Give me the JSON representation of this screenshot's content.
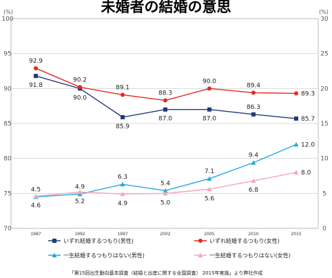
{
  "chart_data": {
    "type": "line",
    "title": "未婚者の結婚の意思",
    "left_unit": "(%)",
    "right_unit": "(%)",
    "categories": [
      "1987",
      "1992",
      "1997",
      "2002",
      "2005",
      "2010",
      "2015"
    ],
    "left_axis": {
      "ticks": [
        "70",
        "75",
        "80",
        "85",
        "90",
        "95",
        "100"
      ],
      "ylim": [
        70,
        100
      ]
    },
    "right_axis": {
      "ticks": [
        "0",
        "5",
        "10",
        "15",
        "20",
        "25",
        "30"
      ],
      "ylim": [
        0,
        30
      ]
    },
    "grid": "horizontal",
    "legend_position": "bottom",
    "series": [
      {
        "name": "いずれ結婚するつもり(男性)",
        "axis": "left",
        "color": "#1f3a7a",
        "marker": "square",
        "values": [
          91.8,
          90.0,
          85.9,
          87.0,
          87.0,
          86.3,
          85.7
        ],
        "labels": [
          "91.8",
          "90.0",
          "85.9",
          "87.0",
          "87.0",
          "86.3",
          "85.7"
        ],
        "label_side": [
          "below",
          "below",
          "below",
          "below",
          "below",
          "above",
          "right"
        ]
      },
      {
        "name": "いずれ結婚するつもり(女性)",
        "axis": "left",
        "color": "#e8251e",
        "marker": "circle",
        "values": [
          92.9,
          90.2,
          89.1,
          88.3,
          90.0,
          89.4,
          89.3
        ],
        "labels": [
          "92.9",
          "90.2",
          "89.1",
          "88.3",
          "90.0",
          "89.4",
          "89.3"
        ],
        "label_side": [
          "above",
          "above",
          "above",
          "above",
          "above",
          "above",
          "right"
        ]
      },
      {
        "name": "一生結婚するつもりはない(男性)",
        "axis": "right",
        "color": "#23a9d8",
        "marker": "triangle",
        "values": [
          4.5,
          4.9,
          6.3,
          5.4,
          7.1,
          9.4,
          12.0
        ],
        "labels": [
          "4.5",
          "4.9",
          "6.3",
          "5.4",
          "7.1",
          "9.4",
          "12.0"
        ],
        "label_side": [
          "above",
          "above",
          "above",
          "above",
          "above",
          "above",
          "right"
        ]
      },
      {
        "name": "一生結婚するつもりはない(女性)",
        "axis": "right",
        "color": "#f3a6b8",
        "marker": "triangle",
        "values": [
          4.6,
          5.2,
          4.9,
          5.0,
          5.6,
          6.8,
          8.0
        ],
        "labels": [
          "4.6",
          "5.2",
          "4.9",
          "5.0",
          "5.6",
          "6.8",
          "8.0"
        ],
        "label_side": [
          "below",
          "below",
          "below",
          "below",
          "below",
          "below",
          "right"
        ]
      }
    ],
    "source_note": "「第15回出生動向基本調査（結婚と出産に関する全国調査） 2015年実施」より弊社作成"
  }
}
